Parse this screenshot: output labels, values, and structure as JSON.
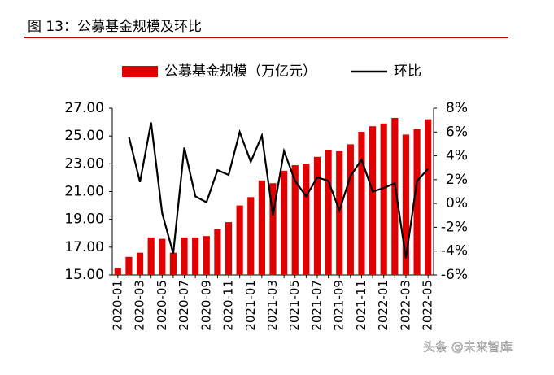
{
  "chart_data": {
    "type": "bar_line",
    "title": "图 13：公募基金规模及环比",
    "watermark": "头条 @未来智库",
    "categories": [
      "2020-01",
      null,
      "2020-03",
      null,
      "2020-05",
      null,
      "2020-07",
      null,
      "2020-09",
      null,
      "2020-11",
      null,
      "2021-01",
      null,
      "2021-03",
      null,
      "2021-05",
      null,
      "2021-07",
      null,
      "2021-09",
      null,
      "2021-11",
      null,
      "2022-01",
      null,
      "2022-03",
      null,
      "2022-05"
    ],
    "series": [
      {
        "name": "公募基金规模（万亿元）",
        "color": "#e00000",
        "type": "bar",
        "values": [
          15.5,
          16.3,
          16.6,
          17.7,
          17.6,
          16.6,
          17.7,
          17.7,
          17.8,
          18.3,
          18.8,
          20.0,
          20.6,
          21.8,
          21.6,
          22.5,
          22.9,
          23.0,
          23.5,
          24.0,
          23.9,
          24.4,
          25.3,
          25.7,
          25.9,
          26.3,
          25.1,
          25.5,
          26.2
        ]
      },
      {
        "name": "环比",
        "color": "#000000",
        "type": "line",
        "axis": "y2",
        "values": [
          null,
          5.6,
          1.8,
          6.8,
          -0.8,
          -4.2,
          4.7,
          0.6,
          0.1,
          2.8,
          2.4,
          6.0,
          3.5,
          5.7,
          -1.0,
          4.4,
          1.9,
          0.6,
          2.2,
          1.9,
          -0.6,
          2.3,
          3.7,
          1.0,
          1.3,
          1.7,
          -4.6,
          1.9,
          2.9
        ]
      }
    ],
    "ylim": [
      15,
      27
    ],
    "yticks": [
      {
        "value": 15,
        "label": "15.00"
      },
      {
        "value": 17,
        "label": "17.00"
      },
      {
        "value": 19,
        "label": "19.00"
      },
      {
        "value": 21,
        "label": "21.00"
      },
      {
        "value": 23,
        "label": "23.00"
      },
      {
        "value": 25,
        "label": "25.00"
      },
      {
        "value": 27,
        "label": "27.00"
      }
    ],
    "y2lim": [
      -6,
      8
    ],
    "y2ticks": [
      {
        "value": -6,
        "label": "-6%"
      },
      {
        "value": -4,
        "label": "-4%"
      },
      {
        "value": -2,
        "label": "-2%"
      },
      {
        "value": 0,
        "label": "0%"
      },
      {
        "value": 2,
        "label": "2%"
      },
      {
        "value": 4,
        "label": "4%"
      },
      {
        "value": 6,
        "label": "6%"
      },
      {
        "value": 8,
        "label": "8%"
      }
    ],
    "legend": "top"
  }
}
